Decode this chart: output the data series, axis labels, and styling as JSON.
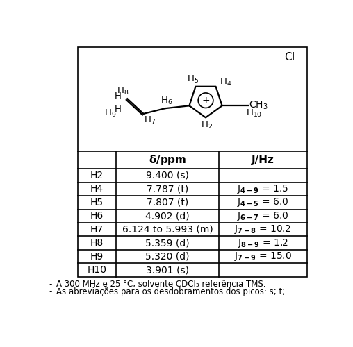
{
  "table_rows": [
    {
      "label": "H2",
      "delta": "9.400 (s)",
      "J_sub": "",
      "J_val": ""
    },
    {
      "label": "H4",
      "delta": "7.787 (t)",
      "J_sub": "4-9",
      "J_val": "1.5"
    },
    {
      "label": "H5",
      "delta": "7.807 (t)",
      "J_sub": "4-5",
      "J_val": "6.0"
    },
    {
      "label": "H6",
      "delta": "4.902 (d)",
      "J_sub": "6-7",
      "J_val": "6.0"
    },
    {
      "label": "H7",
      "delta": "6.124 to 5.993 (m)",
      "J_sub": "7-8",
      "J_val": "10.2"
    },
    {
      "label": "H8",
      "delta": "5.359 (d)",
      "J_sub": "8-9",
      "J_val": "1.2"
    },
    {
      "label": "H9",
      "delta": "5.320 (d)",
      "J_sub": "7-9",
      "J_val": "15.0"
    },
    {
      "label": "H10",
      "delta": "3.901 (s)",
      "J_sub": "",
      "J_val": ""
    }
  ],
  "background": "#ffffff"
}
